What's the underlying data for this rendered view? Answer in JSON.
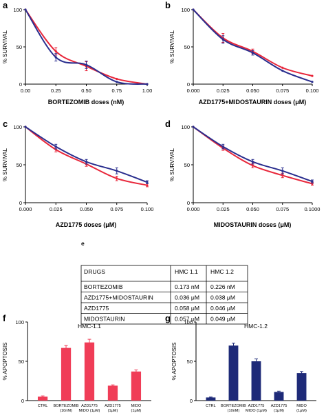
{
  "colors": {
    "red": "#e8263a",
    "blue": "#2a2e8e",
    "bar_red": "#f03d57",
    "bar_blue": "#1e2a78"
  },
  "chart_data": [
    {
      "panel": "a",
      "type": "line",
      "xlabel": "BORTEZOMIB doses (nM)",
      "ylabel": "% SURVIVAL",
      "xlim": [
        0,
        1
      ],
      "ylim": [
        0,
        100
      ],
      "xticks": [
        "0.00",
        "0.25",
        "0.50",
        "0.75",
        "1.00"
      ],
      "yticks": [
        "0",
        "50",
        "100"
      ],
      "series": [
        {
          "color": "red",
          "x": [
            0,
            0.25,
            0.5,
            0.75,
            1.0
          ],
          "y": [
            100,
            44,
            24,
            7,
            0
          ],
          "err": [
            0,
            5,
            6,
            0,
            0
          ]
        },
        {
          "color": "blue",
          "x": [
            0,
            0.25,
            0.5,
            0.75,
            1.0
          ],
          "y": [
            100,
            36,
            26,
            3,
            0
          ],
          "err": [
            0,
            5,
            5,
            0,
            0
          ]
        }
      ]
    },
    {
      "panel": "b",
      "type": "line",
      "xlabel": "AZD1775+MIDOSTAURIN doses (μM)",
      "ylabel": "% SURVIVAL",
      "xlim": [
        0,
        0.1
      ],
      "ylim": [
        0,
        100
      ],
      "xticks": [
        "0.000",
        "0.025",
        "0.050",
        "0.075",
        "0.100"
      ],
      "yticks": [
        "0",
        "50",
        "100"
      ],
      "series": [
        {
          "color": "red",
          "x": [
            0,
            0.025,
            0.05,
            0.075,
            0.1
          ],
          "y": [
            100,
            62,
            44,
            22,
            11
          ],
          "err": [
            0,
            6,
            3,
            0,
            0
          ]
        },
        {
          "color": "blue",
          "x": [
            0,
            0.025,
            0.05,
            0.075,
            0.1
          ],
          "y": [
            100,
            60,
            42,
            18,
            3
          ],
          "err": [
            0,
            5,
            3,
            0,
            0
          ]
        }
      ]
    },
    {
      "panel": "c",
      "type": "line",
      "xlabel": "AZD1775 doses (μM)",
      "ylabel": "% SURVIVAL",
      "xlim": [
        0,
        0.1
      ],
      "ylim": [
        0,
        100
      ],
      "xticks": [
        "0.000",
        "0.025",
        "0.050",
        "0.075",
        "0.100"
      ],
      "yticks": [
        "0",
        "50",
        "100"
      ],
      "series": [
        {
          "color": "red",
          "x": [
            0,
            0.025,
            0.05,
            0.075,
            0.1
          ],
          "y": [
            100,
            70,
            51,
            32,
            23
          ],
          "err": [
            0,
            3,
            3,
            3,
            2
          ]
        },
        {
          "color": "blue",
          "x": [
            0,
            0.025,
            0.05,
            0.075,
            0.1
          ],
          "y": [
            100,
            74,
            54,
            42,
            27
          ],
          "err": [
            0,
            3,
            3,
            4,
            2
          ]
        }
      ]
    },
    {
      "panel": "d",
      "type": "line",
      "xlabel": "MIDOSTAURIN doses (μM)",
      "ylabel": "% SURVIVAL",
      "xlim": [
        0,
        0.1
      ],
      "ylim": [
        0,
        100
      ],
      "xticks": [
        "0.000",
        "0.025",
        "0.050",
        "0.075",
        "0.1000"
      ],
      "yticks": [
        "0",
        "50",
        "100"
      ],
      "series": [
        {
          "color": "red",
          "x": [
            0,
            0.025,
            0.05,
            0.075,
            0.1
          ],
          "y": [
            100,
            72,
            49,
            36,
            25
          ],
          "err": [
            0,
            3,
            3,
            3,
            2
          ]
        },
        {
          "color": "blue",
          "x": [
            0,
            0.025,
            0.05,
            0.075,
            0.1
          ],
          "y": [
            100,
            74,
            54,
            42,
            28
          ],
          "err": [
            0,
            3,
            3,
            4,
            2
          ]
        }
      ]
    },
    {
      "panel": "e",
      "type": "table",
      "columns": [
        "DRUGS",
        "HMC 1.1",
        "HMC 1.2"
      ],
      "rows": [
        [
          "BORTEZOMIB",
          "0.173 nM",
          "0.226 nM"
        ],
        [
          "AZD1775+MIDOSTAURIN",
          "0.036 μM",
          "0.038 μM"
        ],
        [
          "AZD1775",
          "0.058 μM",
          "0.046 μM"
        ],
        [
          "MIDOSTAURIN",
          "0.057 μM",
          "0.049 μM"
        ]
      ]
    },
    {
      "panel": "f",
      "type": "bar",
      "title": "HMC-1.1",
      "ylabel": "% APOPTOSIS",
      "ylim": [
        0,
        100
      ],
      "yticks": [
        "0",
        "50",
        "100"
      ],
      "color": "bar_red",
      "categories": [
        [
          "CTRL"
        ],
        [
          "BORTEZOMIB",
          "(10nM)"
        ],
        [
          "AZD1775",
          "MIDO (1μM)"
        ],
        [
          "AZD1775",
          "(1μM)"
        ],
        [
          "MIDO",
          "(1μM)"
        ]
      ],
      "values": [
        5,
        67,
        74,
        19,
        37
      ],
      "err": [
        1,
        3,
        4,
        1,
        2
      ]
    },
    {
      "panel": "g",
      "type": "bar",
      "title": "HMC-1.2",
      "ylabel": "% APOPTOSIS",
      "ylim": [
        0,
        100
      ],
      "yticks": [
        "0",
        "50",
        "100"
      ],
      "color": "bar_blue",
      "categories": [
        [
          "CTRL"
        ],
        [
          "BORTEZOMIB",
          "(10nM)"
        ],
        [
          "AZD1775",
          "MIDO (1μM)"
        ],
        [
          "AZD1775",
          "(1μM)"
        ],
        [
          "MIDO",
          "(1μM)"
        ]
      ],
      "values": [
        4,
        70,
        50,
        11,
        35
      ],
      "err": [
        0.5,
        3,
        3,
        1,
        2
      ]
    }
  ]
}
